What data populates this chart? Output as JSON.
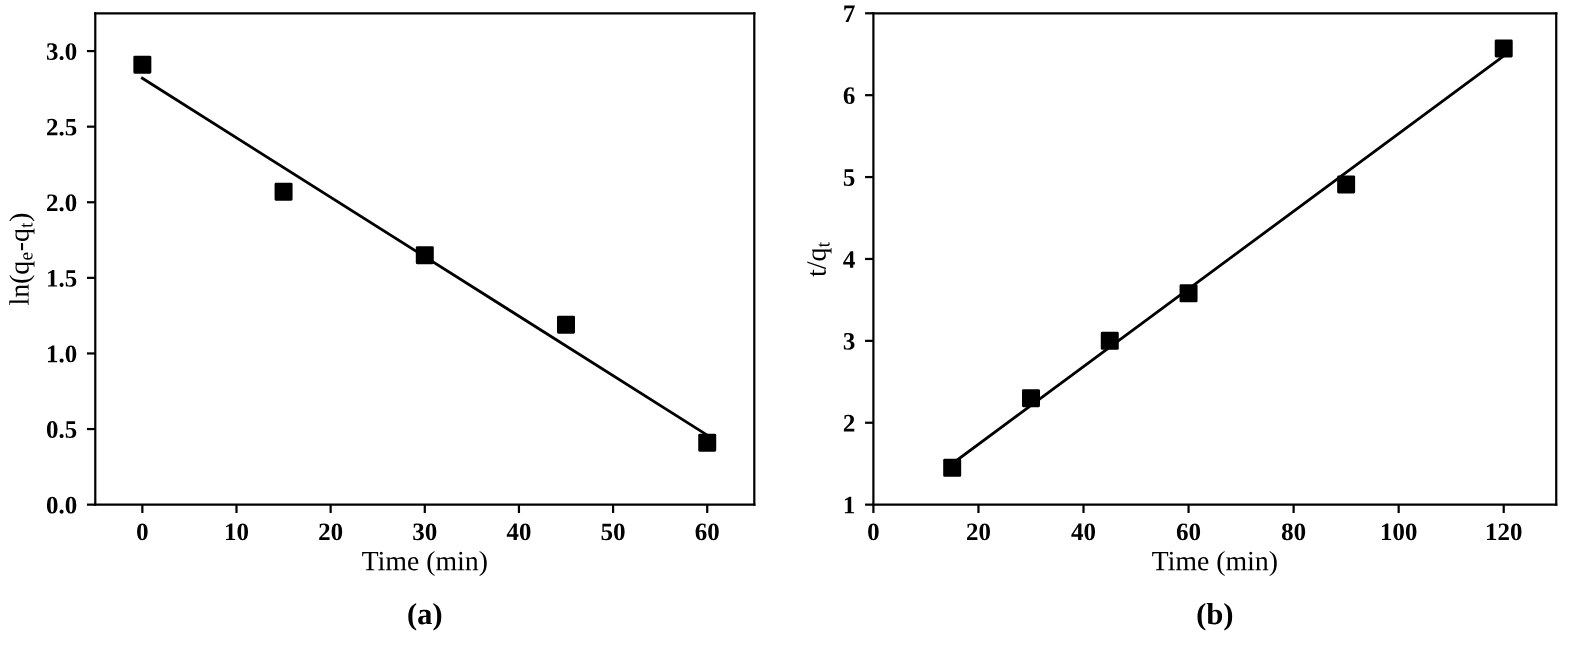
{
  "chart_data": [
    {
      "type": "scatter",
      "xlabel": "Time (min)",
      "ylabel": "ln(q$_{e}$-q$_{t}$)",
      "annotations": [
        "(a)"
      ],
      "grid": false,
      "xlim": [
        -5,
        65
      ],
      "xticks": [
        0,
        10,
        20,
        30,
        40,
        50,
        60
      ],
      "ylim": [
        0,
        3.25
      ],
      "yticks": [
        {
          "value": 0,
          "label": "0.0"
        },
        0.5,
        {
          "value": 1,
          "label": "1.0"
        },
        1.5,
        {
          "value": 2,
          "label": "2.0"
        },
        2.5,
        {
          "value": 3,
          "label": "3.0"
        }
      ],
      "series": [
        {
          "marker": "square",
          "color": "#000000",
          "x": [
            0,
            15,
            30,
            45,
            60
          ],
          "values": [
            2.91,
            2.07,
            1.65,
            1.19,
            0.41
          ]
        },
        {
          "type": "line",
          "color": "#000000",
          "x": [
            0,
            60
          ],
          "values": [
            2.82,
            0.46
          ]
        }
      ]
    },
    {
      "type": "scatter",
      "xlabel": "Time (min)",
      "ylabel": "t/q$_{t}$",
      "annotations": [
        "(b)"
      ],
      "grid": false,
      "xlim": [
        0,
        130
      ],
      "xticks": [
        0,
        20,
        40,
        60,
        80,
        100,
        120
      ],
      "ylim": [
        1,
        7
      ],
      "yticks": [
        1,
        2,
        3,
        4,
        5,
        6,
        7
      ],
      "series": [
        {
          "marker": "square",
          "color": "#000000",
          "x": [
            15,
            30,
            45,
            60,
            90,
            120
          ],
          "values": [
            1.45,
            2.3,
            3.0,
            3.58,
            4.91,
            6.57
          ]
        },
        {
          "type": "line",
          "color": "#000000",
          "x": [
            15,
            120
          ],
          "values": [
            1.5,
            6.48
          ]
        }
      ]
    }
  ]
}
